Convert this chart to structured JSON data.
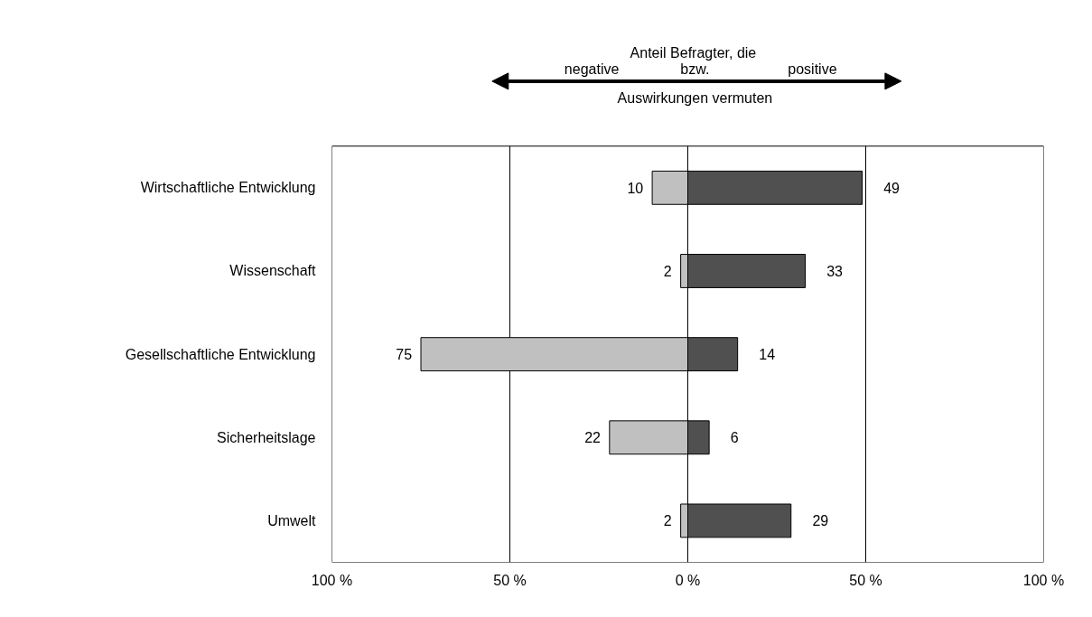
{
  "chart_data": {
    "type": "bar",
    "orientation": "horizontal",
    "stacked": true,
    "categories": [
      "Wirtschaftliche Entwicklung",
      "Wissenschaft",
      "Gesellschaftliche Entwicklung",
      "Sicherheitslage",
      "Umwelt"
    ],
    "series": [
      {
        "color": "#c0c0c0",
        "base": [
          -10,
          -2,
          -75,
          -22,
          -2
        ],
        "values": [
          10,
          2,
          75,
          22,
          2
        ],
        "value_labels": [
          "10",
          "2",
          "75",
          "22",
          "2"
        ]
      },
      {
        "color": "#505050",
        "values": [
          49,
          33,
          14,
          6,
          29
        ],
        "value_labels": [
          "49",
          "33",
          "14",
          "6",
          "29"
        ]
      }
    ],
    "xlim": [
      -100,
      100
    ],
    "xticks": [
      {
        "value": -100,
        "label": "100 %"
      },
      {
        "value": -50,
        "label": "50 %"
      },
      {
        "value": 0,
        "label": "0 %"
      },
      {
        "value": 50,
        "label": "50 %"
      },
      {
        "value": 100,
        "label": "100 %"
      }
    ],
    "grid": "x",
    "annotations": [
      "Anteil Befragter, die",
      "negative",
      "bzw.",
      "positive",
      "Auswirkungen vermuten"
    ]
  }
}
